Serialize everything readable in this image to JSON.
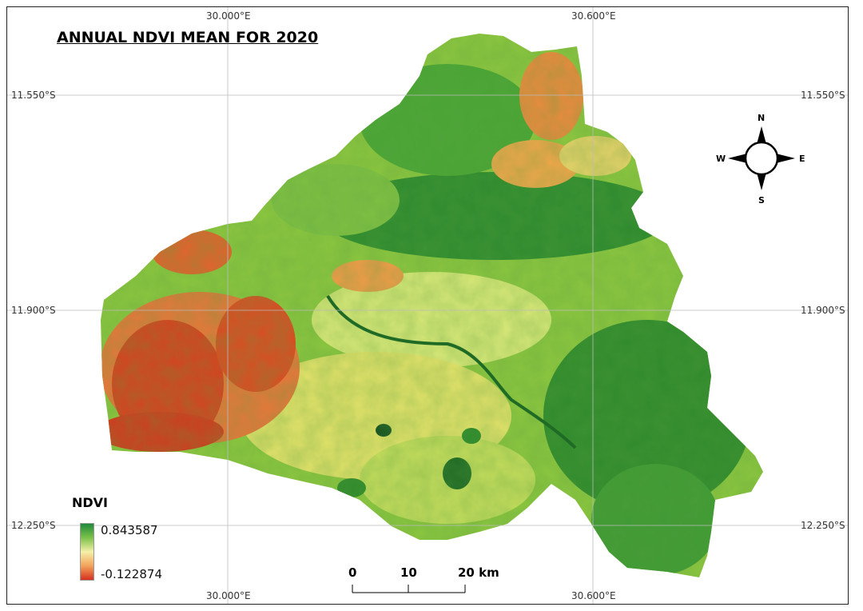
{
  "map": {
    "title": "ANNUAL NDVI MEAN FOR 2020",
    "graticule": {
      "top_labels": [
        "30.000°E",
        "30.600°E"
      ],
      "bottom_labels": [
        "30.000°E",
        "30.600°E"
      ],
      "left_labels": [
        "11.550°S",
        "11.900°S",
        "12.250°S"
      ],
      "right_labels": [
        "11.550°S",
        "11.900°S",
        "12.250°S"
      ]
    },
    "legend": {
      "title": "NDVI",
      "max": "0.843587",
      "min": "-0.122874",
      "colors": [
        "#1f8a3a",
        "#7cc24a",
        "#f5f0a8",
        "#f3a35a",
        "#d7301f"
      ]
    },
    "scale_bar": {
      "labels": [
        "0",
        "10",
        "20 km"
      ]
    },
    "north_arrow": {
      "n": "N",
      "s": "S",
      "e": "E",
      "w": "W"
    }
  }
}
